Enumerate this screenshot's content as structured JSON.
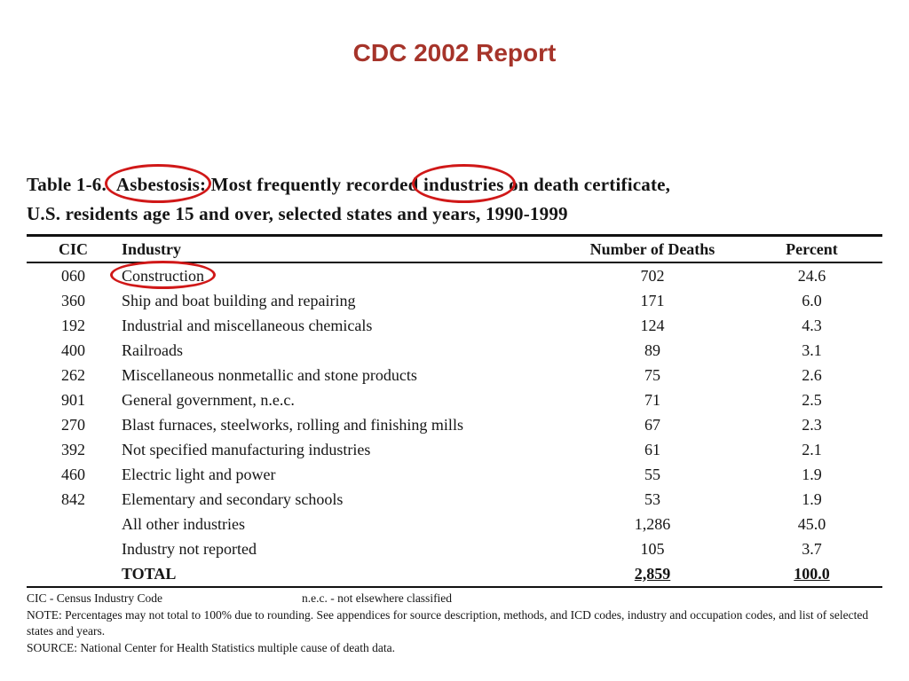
{
  "slide_title": {
    "text": "CDC 2002 Report",
    "color": "#A6342A"
  },
  "annotations": {
    "circle_color": "#D01818"
  },
  "table": {
    "caption": {
      "part1": "Table 1-6.",
      "circled1": "Asbestosis",
      "part2": ":  Most frequently recorded",
      "circled2": "industries",
      "part3": "on death certificate,",
      "line2": "U.S. residents age 15 and over, selected states and years, 1990-1999"
    },
    "headers": {
      "cic": "CIC",
      "industry": "Industry",
      "deaths": "Number of Deaths",
      "percent": "Percent"
    },
    "rows": [
      {
        "cic": "060",
        "industry": "Construction",
        "deaths": "702",
        "percent": "24.6"
      },
      {
        "cic": "360",
        "industry": "Ship and boat building and repairing",
        "deaths": "171",
        "percent": "6.0"
      },
      {
        "cic": "192",
        "industry": "Industrial and miscellaneous chemicals",
        "deaths": "124",
        "percent": "4.3"
      },
      {
        "cic": "400",
        "industry": "Railroads",
        "deaths": "89",
        "percent": "3.1"
      },
      {
        "cic": "262",
        "industry": "Miscellaneous nonmetallic and stone products",
        "deaths": "75",
        "percent": "2.6"
      },
      {
        "cic": "901",
        "industry": "General government, n.e.c.",
        "deaths": "71",
        "percent": "2.5"
      },
      {
        "cic": "270",
        "industry": "Blast furnaces, steelworks, rolling and finishing mills",
        "deaths": "67",
        "percent": "2.3"
      },
      {
        "cic": "392",
        "industry": "Not specified manufacturing industries",
        "deaths": "61",
        "percent": "2.1"
      },
      {
        "cic": "460",
        "industry": "Electric light and power",
        "deaths": "55",
        "percent": "1.9"
      },
      {
        "cic": "842",
        "industry": "Elementary and secondary schools",
        "deaths": "53",
        "percent": "1.9"
      },
      {
        "cic": "",
        "industry": "All other industries",
        "deaths": "1,286",
        "percent": "45.0"
      },
      {
        "cic": "",
        "industry": "Industry not reported",
        "deaths": "105",
        "percent": "3.7"
      },
      {
        "cic": "",
        "industry": "TOTAL",
        "deaths": "2,859",
        "percent": "100.0"
      }
    ],
    "footnotes": {
      "line1_left": "CIC - Census Industry Code",
      "line1_right": "n.e.c. - not elsewhere classified",
      "note": "NOTE:  Percentages may not total to 100% due to rounding.  See appendices for source description, methods, and ICD codes, industry and occupation codes, and list of selected states and years.",
      "source": "SOURCE:  National Center for Health Statistics multiple cause of death data."
    }
  }
}
